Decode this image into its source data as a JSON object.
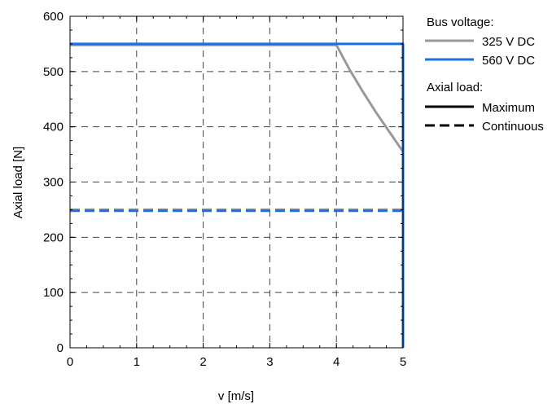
{
  "chart_data": {
    "type": "line",
    "xlabel": "v [m/s]",
    "ylabel": "Axial load [N]",
    "xlim": [
      0,
      5
    ],
    "ylim": [
      0,
      600
    ],
    "xticks": [
      0,
      1,
      2,
      3,
      4,
      5
    ],
    "yticks": [
      0,
      100,
      200,
      300,
      400,
      500,
      600
    ],
    "grid": true,
    "legend_position": "right",
    "colors": {
      "voltage_325": "#999999",
      "voltage_560": "#1a6ee6",
      "legend_black": "#000000"
    },
    "legend": {
      "voltage_title": "Bus voltage:",
      "voltage_325_label": "325 V DC",
      "voltage_560_label": "560 V DC",
      "load_title": "Axial load:",
      "max_label": "Maximum",
      "cont_label": "Continuous"
    },
    "series": [
      {
        "name": "325 V DC",
        "style": "solid",
        "color": "voltage_325",
        "x": [
          0,
          4.0,
          4.2,
          4.4,
          4.6,
          4.8,
          5.0
        ],
        "y": [
          548,
          548,
          503,
          463,
          425,
          390,
          355
        ]
      },
      {
        "name": "325 V DC",
        "style": "dashed",
        "color": "voltage_325",
        "x": [
          0,
          5.0
        ],
        "y": [
          250,
          250
        ]
      },
      {
        "name": "560 V DC",
        "style": "solid",
        "color": "voltage_560",
        "x": [
          0,
          5.0,
          5.0
        ],
        "y": [
          550,
          550,
          0
        ]
      },
      {
        "name": "560 V DC",
        "style": "dashed",
        "color": "voltage_560",
        "x": [
          0,
          5.0
        ],
        "y": [
          248,
          248
        ]
      }
    ]
  }
}
